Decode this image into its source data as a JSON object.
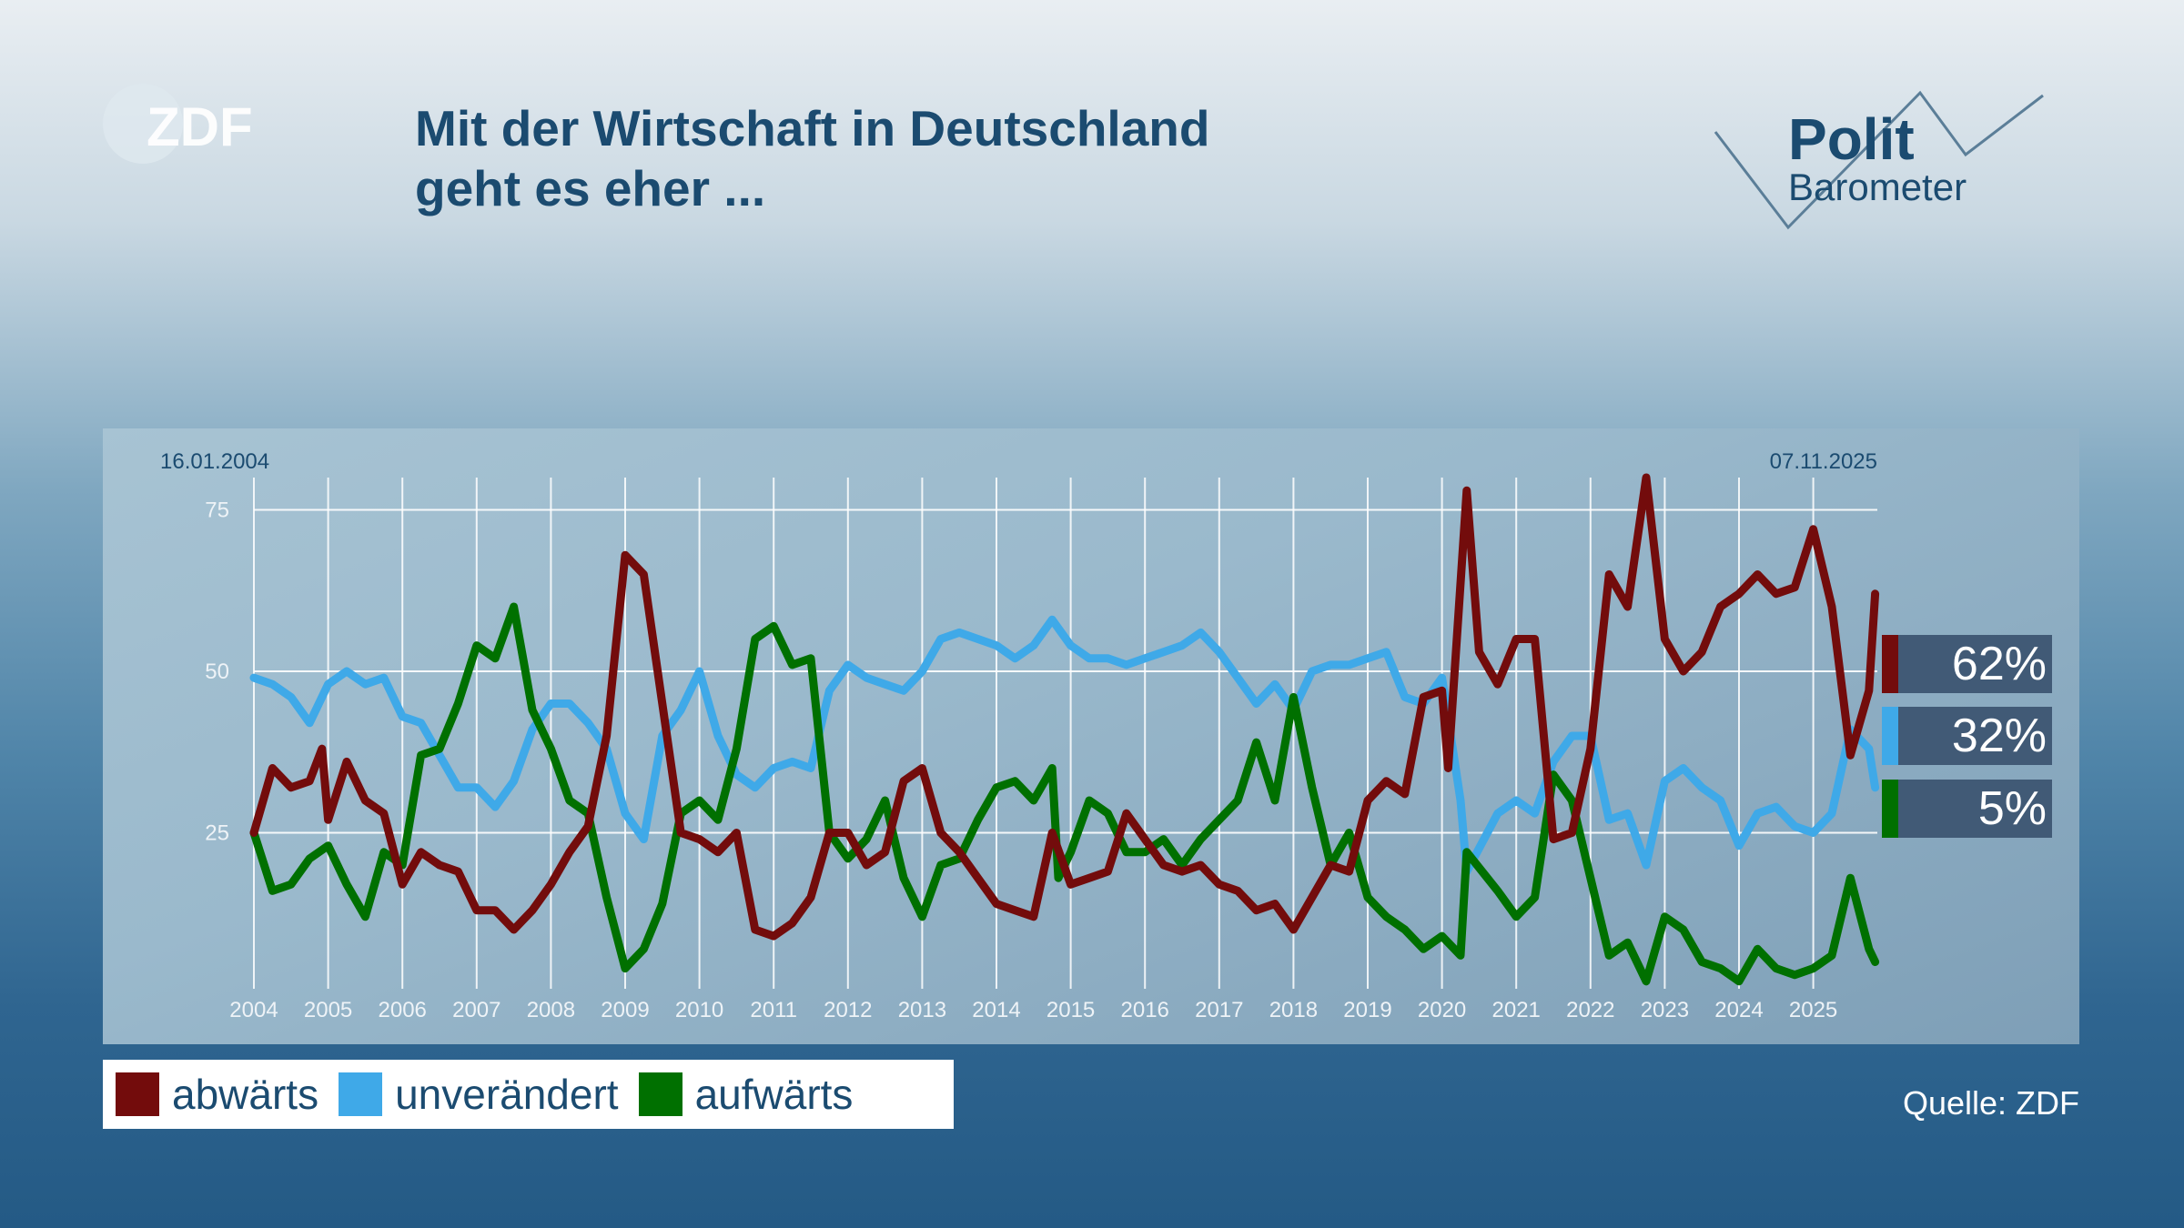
{
  "header": {
    "title_line1": "Mit der Wirtschaft in Deutschland",
    "title_line2": "geht es eher ...",
    "broadcaster_logo": "ZDF",
    "show_logo_line1": "Polit",
    "show_logo_line2": "Barometer"
  },
  "source": "Quelle: ZDF",
  "colors": {
    "abwaerts": "#730c0c",
    "unveraendert": "#3fa9e8",
    "aufwaerts": "#007000",
    "label_box": "#415a76"
  },
  "chart_data": {
    "type": "line",
    "start_date_label": "16.01.2004",
    "end_date_label": "07.11.2025",
    "x_ticks": [
      "2004",
      "2005",
      "2006",
      "2007",
      "2008",
      "2009",
      "2010",
      "2011",
      "2012",
      "2013",
      "2014",
      "2015",
      "2016",
      "2017",
      "2018",
      "2019",
      "2020",
      "2021",
      "2022",
      "2023",
      "2024",
      "2025"
    ],
    "y_ticks": [
      "25",
      "50",
      "75"
    ],
    "ylim": [
      0,
      80
    ],
    "xlim": [
      "2004-01",
      "2025-11"
    ],
    "grid": true,
    "legend_position": "bottom-left",
    "series": [
      {
        "name": "abwärts",
        "color": "#730c0c",
        "last_label": "62%",
        "points": [
          [
            "2004-01",
            25
          ],
          [
            "2004-04",
            35
          ],
          [
            "2004-07",
            32
          ],
          [
            "2004-10",
            33
          ],
          [
            "2004-12",
            38
          ],
          [
            "2005-01",
            27
          ],
          [
            "2005-04",
            36
          ],
          [
            "2005-07",
            30
          ],
          [
            "2005-10",
            28
          ],
          [
            "2006-01",
            17
          ],
          [
            "2006-04",
            22
          ],
          [
            "2006-07",
            20
          ],
          [
            "2006-10",
            19
          ],
          [
            "2007-01",
            13
          ],
          [
            "2007-04",
            13
          ],
          [
            "2007-07",
            10
          ],
          [
            "2007-10",
            13
          ],
          [
            "2008-01",
            17
          ],
          [
            "2008-04",
            22
          ],
          [
            "2008-07",
            26
          ],
          [
            "2008-10",
            40
          ],
          [
            "2009-01",
            68
          ],
          [
            "2009-04",
            65
          ],
          [
            "2009-07",
            45
          ],
          [
            "2009-10",
            25
          ],
          [
            "2010-01",
            24
          ],
          [
            "2010-04",
            22
          ],
          [
            "2010-07",
            25
          ],
          [
            "2010-10",
            10
          ],
          [
            "2011-01",
            9
          ],
          [
            "2011-04",
            11
          ],
          [
            "2011-07",
            15
          ],
          [
            "2011-10",
            25
          ],
          [
            "2012-01",
            25
          ],
          [
            "2012-04",
            20
          ],
          [
            "2012-07",
            22
          ],
          [
            "2012-10",
            33
          ],
          [
            "2013-01",
            35
          ],
          [
            "2013-04",
            25
          ],
          [
            "2013-07",
            22
          ],
          [
            "2013-10",
            18
          ],
          [
            "2014-01",
            14
          ],
          [
            "2014-04",
            13
          ],
          [
            "2014-07",
            12
          ],
          [
            "2014-10",
            25
          ],
          [
            "2015-01",
            17
          ],
          [
            "2015-04",
            18
          ],
          [
            "2015-07",
            19
          ],
          [
            "2015-10",
            28
          ],
          [
            "2016-01",
            24
          ],
          [
            "2016-04",
            20
          ],
          [
            "2016-07",
            19
          ],
          [
            "2016-10",
            20
          ],
          [
            "2017-01",
            17
          ],
          [
            "2017-04",
            16
          ],
          [
            "2017-07",
            13
          ],
          [
            "2017-10",
            14
          ],
          [
            "2018-01",
            10
          ],
          [
            "2018-04",
            15
          ],
          [
            "2018-07",
            20
          ],
          [
            "2018-10",
            19
          ],
          [
            "2019-01",
            30
          ],
          [
            "2019-04",
            33
          ],
          [
            "2019-07",
            31
          ],
          [
            "2019-10",
            46
          ],
          [
            "2020-01",
            47
          ],
          [
            "2020-02",
            35
          ],
          [
            "2020-05",
            78
          ],
          [
            "2020-07",
            53
          ],
          [
            "2020-10",
            48
          ],
          [
            "2021-01",
            55
          ],
          [
            "2021-04",
            55
          ],
          [
            "2021-07",
            24
          ],
          [
            "2021-10",
            25
          ],
          [
            "2022-01",
            38
          ],
          [
            "2022-04",
            65
          ],
          [
            "2022-07",
            60
          ],
          [
            "2022-10",
            80
          ],
          [
            "2023-01",
            55
          ],
          [
            "2023-04",
            50
          ],
          [
            "2023-07",
            53
          ],
          [
            "2023-10",
            60
          ],
          [
            "2024-01",
            62
          ],
          [
            "2024-04",
            65
          ],
          [
            "2024-07",
            62
          ],
          [
            "2024-10",
            63
          ],
          [
            "2025-01",
            72
          ],
          [
            "2025-04",
            60
          ],
          [
            "2025-07",
            37
          ],
          [
            "2025-10",
            47
          ],
          [
            "2025-11",
            62
          ]
        ]
      },
      {
        "name": "unverändert",
        "color": "#3fa9e8",
        "last_label": "32%",
        "points": [
          [
            "2004-01",
            49
          ],
          [
            "2004-04",
            48
          ],
          [
            "2004-07",
            46
          ],
          [
            "2004-10",
            42
          ],
          [
            "2005-01",
            48
          ],
          [
            "2005-04",
            50
          ],
          [
            "2005-07",
            48
          ],
          [
            "2005-10",
            49
          ],
          [
            "2006-01",
            43
          ],
          [
            "2006-04",
            42
          ],
          [
            "2006-07",
            37
          ],
          [
            "2006-10",
            32
          ],
          [
            "2007-01",
            32
          ],
          [
            "2007-04",
            29
          ],
          [
            "2007-07",
            33
          ],
          [
            "2007-10",
            41
          ],
          [
            "2008-01",
            45
          ],
          [
            "2008-04",
            45
          ],
          [
            "2008-07",
            42
          ],
          [
            "2008-10",
            38
          ],
          [
            "2009-01",
            28
          ],
          [
            "2009-04",
            24
          ],
          [
            "2009-07",
            40
          ],
          [
            "2009-10",
            44
          ],
          [
            "2010-01",
            50
          ],
          [
            "2010-04",
            40
          ],
          [
            "2010-07",
            34
          ],
          [
            "2010-10",
            32
          ],
          [
            "2011-01",
            35
          ],
          [
            "2011-04",
            36
          ],
          [
            "2011-07",
            35
          ],
          [
            "2011-10",
            47
          ],
          [
            "2012-01",
            51
          ],
          [
            "2012-04",
            49
          ],
          [
            "2012-07",
            48
          ],
          [
            "2012-10",
            47
          ],
          [
            "2013-01",
            50
          ],
          [
            "2013-04",
            55
          ],
          [
            "2013-07",
            56
          ],
          [
            "2013-10",
            55
          ],
          [
            "2014-01",
            54
          ],
          [
            "2014-04",
            52
          ],
          [
            "2014-07",
            54
          ],
          [
            "2014-10",
            58
          ],
          [
            "2015-01",
            54
          ],
          [
            "2015-04",
            52
          ],
          [
            "2015-07",
            52
          ],
          [
            "2015-10",
            51
          ],
          [
            "2016-01",
            52
          ],
          [
            "2016-04",
            53
          ],
          [
            "2016-07",
            54
          ],
          [
            "2016-10",
            56
          ],
          [
            "2017-01",
            53
          ],
          [
            "2017-04",
            49
          ],
          [
            "2017-07",
            45
          ],
          [
            "2017-10",
            48
          ],
          [
            "2018-01",
            44
          ],
          [
            "2018-04",
            50
          ],
          [
            "2018-07",
            51
          ],
          [
            "2018-10",
            51
          ],
          [
            "2019-01",
            52
          ],
          [
            "2019-04",
            53
          ],
          [
            "2019-07",
            46
          ],
          [
            "2019-10",
            45
          ],
          [
            "2020-01",
            49
          ],
          [
            "2020-04",
            30
          ],
          [
            "2020-05",
            19
          ],
          [
            "2020-10",
            28
          ],
          [
            "2021-01",
            30
          ],
          [
            "2021-04",
            28
          ],
          [
            "2021-07",
            36
          ],
          [
            "2021-10",
            40
          ],
          [
            "2022-01",
            40
          ],
          [
            "2022-04",
            27
          ],
          [
            "2022-07",
            28
          ],
          [
            "2022-10",
            20
          ],
          [
            "2023-01",
            33
          ],
          [
            "2023-04",
            35
          ],
          [
            "2023-07",
            32
          ],
          [
            "2023-10",
            30
          ],
          [
            "2024-01",
            23
          ],
          [
            "2024-04",
            28
          ],
          [
            "2024-07",
            29
          ],
          [
            "2024-10",
            26
          ],
          [
            "2025-01",
            25
          ],
          [
            "2025-04",
            28
          ],
          [
            "2025-07",
            41
          ],
          [
            "2025-10",
            38
          ],
          [
            "2025-11",
            32
          ]
        ]
      },
      {
        "name": "aufwärts",
        "color": "#007000",
        "last_label": "5%",
        "points": [
          [
            "2004-01",
            25
          ],
          [
            "2004-04",
            16
          ],
          [
            "2004-07",
            17
          ],
          [
            "2004-10",
            21
          ],
          [
            "2005-01",
            23
          ],
          [
            "2005-04",
            17
          ],
          [
            "2005-07",
            12
          ],
          [
            "2005-10",
            22
          ],
          [
            "2006-01",
            20
          ],
          [
            "2006-04",
            37
          ],
          [
            "2006-07",
            38
          ],
          [
            "2006-10",
            45
          ],
          [
            "2007-01",
            54
          ],
          [
            "2007-04",
            52
          ],
          [
            "2007-07",
            60
          ],
          [
            "2007-10",
            44
          ],
          [
            "2008-01",
            38
          ],
          [
            "2008-04",
            30
          ],
          [
            "2008-07",
            28
          ],
          [
            "2008-10",
            15
          ],
          [
            "2009-01",
            4
          ],
          [
            "2009-04",
            7
          ],
          [
            "2009-07",
            14
          ],
          [
            "2009-10",
            28
          ],
          [
            "2010-01",
            30
          ],
          [
            "2010-04",
            27
          ],
          [
            "2010-07",
            38
          ],
          [
            "2010-10",
            55
          ],
          [
            "2011-01",
            57
          ],
          [
            "2011-04",
            51
          ],
          [
            "2011-07",
            52
          ],
          [
            "2011-10",
            25
          ],
          [
            "2012-01",
            21
          ],
          [
            "2012-04",
            24
          ],
          [
            "2012-07",
            30
          ],
          [
            "2012-10",
            18
          ],
          [
            "2013-01",
            12
          ],
          [
            "2013-04",
            20
          ],
          [
            "2013-07",
            21
          ],
          [
            "2013-10",
            27
          ],
          [
            "2014-01",
            32
          ],
          [
            "2014-04",
            33
          ],
          [
            "2014-07",
            30
          ],
          [
            "2014-10",
            35
          ],
          [
            "2014-11",
            18
          ],
          [
            "2015-01",
            22
          ],
          [
            "2015-04",
            30
          ],
          [
            "2015-07",
            28
          ],
          [
            "2015-10",
            22
          ],
          [
            "2016-01",
            22
          ],
          [
            "2016-04",
            24
          ],
          [
            "2016-07",
            20
          ],
          [
            "2016-10",
            24
          ],
          [
            "2017-01",
            27
          ],
          [
            "2017-04",
            30
          ],
          [
            "2017-07",
            39
          ],
          [
            "2017-10",
            30
          ],
          [
            "2018-01",
            46
          ],
          [
            "2018-04",
            32
          ],
          [
            "2018-07",
            20
          ],
          [
            "2018-10",
            25
          ],
          [
            "2019-01",
            15
          ],
          [
            "2019-04",
            12
          ],
          [
            "2019-07",
            10
          ],
          [
            "2019-10",
            7
          ],
          [
            "2020-01",
            9
          ],
          [
            "2020-04",
            6
          ],
          [
            "2020-05",
            22
          ],
          [
            "2020-10",
            16
          ],
          [
            "2021-01",
            12
          ],
          [
            "2021-04",
            15
          ],
          [
            "2021-07",
            34
          ],
          [
            "2021-10",
            30
          ],
          [
            "2022-01",
            18
          ],
          [
            "2022-04",
            6
          ],
          [
            "2022-07",
            8
          ],
          [
            "2022-10",
            2
          ],
          [
            "2023-01",
            12
          ],
          [
            "2023-04",
            10
          ],
          [
            "2023-07",
            5
          ],
          [
            "2023-10",
            4
          ],
          [
            "2024-01",
            2
          ],
          [
            "2024-04",
            7
          ],
          [
            "2024-07",
            4
          ],
          [
            "2024-10",
            3
          ],
          [
            "2025-01",
            4
          ],
          [
            "2025-04",
            6
          ],
          [
            "2025-07",
            18
          ],
          [
            "2025-10",
            7
          ],
          [
            "2025-11",
            5
          ]
        ]
      }
    ]
  }
}
